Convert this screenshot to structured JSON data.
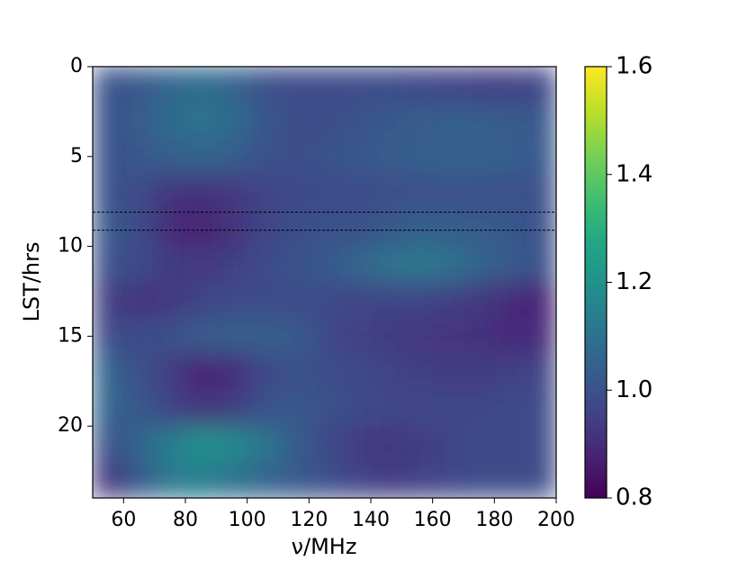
{
  "chart_data": {
    "type": "heatmap",
    "x_label": "ν/MHz",
    "y_label": "LST/hrs",
    "x": [
      55,
      65,
      75,
      85,
      95,
      105,
      115,
      125,
      135,
      145,
      155,
      165,
      175,
      185,
      195
    ],
    "y": [
      1,
      3,
      5,
      7,
      9,
      11,
      13,
      15,
      17,
      19,
      21,
      23
    ],
    "z": [
      [
        1.0,
        1.02,
        1.06,
        1.08,
        1.06,
        1.0,
        0.98,
        0.98,
        0.98,
        0.98,
        0.97,
        0.96,
        0.95,
        0.95,
        0.96
      ],
      [
        1.0,
        1.03,
        1.08,
        1.1,
        1.08,
        1.02,
        0.99,
        0.99,
        1.0,
        1.02,
        1.03,
        1.04,
        1.04,
        1.03,
        1.02
      ],
      [
        1.0,
        1.02,
        1.04,
        1.06,
        1.04,
        1.0,
        0.99,
        1.0,
        1.02,
        1.03,
        1.04,
        1.05,
        1.05,
        1.04,
        1.02
      ],
      [
        1.0,
        0.98,
        0.92,
        0.91,
        0.93,
        0.96,
        0.98,
        0.98,
        0.98,
        0.99,
        1.0,
        1.0,
        1.0,
        1.0,
        1.0
      ],
      [
        1.02,
        0.98,
        0.9,
        0.88,
        0.91,
        0.96,
        0.99,
        1.0,
        1.0,
        1.02,
        1.04,
        1.04,
        1.03,
        1.02,
        1.0
      ],
      [
        1.0,
        0.98,
        0.94,
        0.93,
        0.95,
        0.98,
        1.0,
        1.02,
        1.06,
        1.1,
        1.12,
        1.1,
        1.06,
        1.03,
        1.0
      ],
      [
        0.94,
        0.92,
        0.93,
        0.96,
        0.98,
        0.98,
        0.98,
        0.98,
        0.97,
        0.96,
        0.96,
        0.95,
        0.93,
        0.9,
        0.88
      ],
      [
        0.98,
        0.98,
        1.0,
        1.03,
        1.04,
        1.04,
        1.03,
        0.98,
        0.95,
        0.94,
        0.93,
        0.92,
        0.91,
        0.9,
        0.9
      ],
      [
        1.06,
        1.0,
        0.94,
        0.88,
        0.9,
        0.97,
        1.0,
        0.99,
        0.98,
        0.96,
        0.95,
        0.94,
        0.94,
        0.95,
        0.96
      ],
      [
        1.06,
        1.02,
        0.96,
        0.92,
        0.94,
        1.0,
        1.02,
        1.0,
        0.98,
        0.97,
        0.97,
        0.97,
        0.97,
        0.98,
        0.98
      ],
      [
        1.0,
        1.06,
        1.14,
        1.2,
        1.18,
        1.12,
        1.04,
        0.98,
        0.94,
        0.93,
        0.94,
        0.96,
        0.98,
        0.98,
        0.98
      ],
      [
        0.92,
        1.02,
        1.12,
        1.14,
        1.1,
        1.06,
        1.02,
        1.0,
        0.96,
        0.94,
        0.95,
        0.97,
        0.98,
        0.98,
        0.98
      ]
    ],
    "cell_width": 10,
    "cell_height": 2,
    "xlim": [
      50,
      200
    ],
    "xticks": [
      60,
      80,
      100,
      120,
      140,
      160,
      180,
      200
    ],
    "ylim": [
      0,
      24
    ],
    "y_inverted": true,
    "yticks": [
      0,
      5,
      10,
      15,
      20
    ],
    "colormap": "viridis",
    "clim": [
      0.8,
      1.6
    ],
    "cticks": [
      0.8,
      {
        "value": 1.0,
        "label": "1.0"
      },
      1.2,
      1.4,
      1.6
    ],
    "hlines": [
      8.1,
      9.1
    ]
  }
}
